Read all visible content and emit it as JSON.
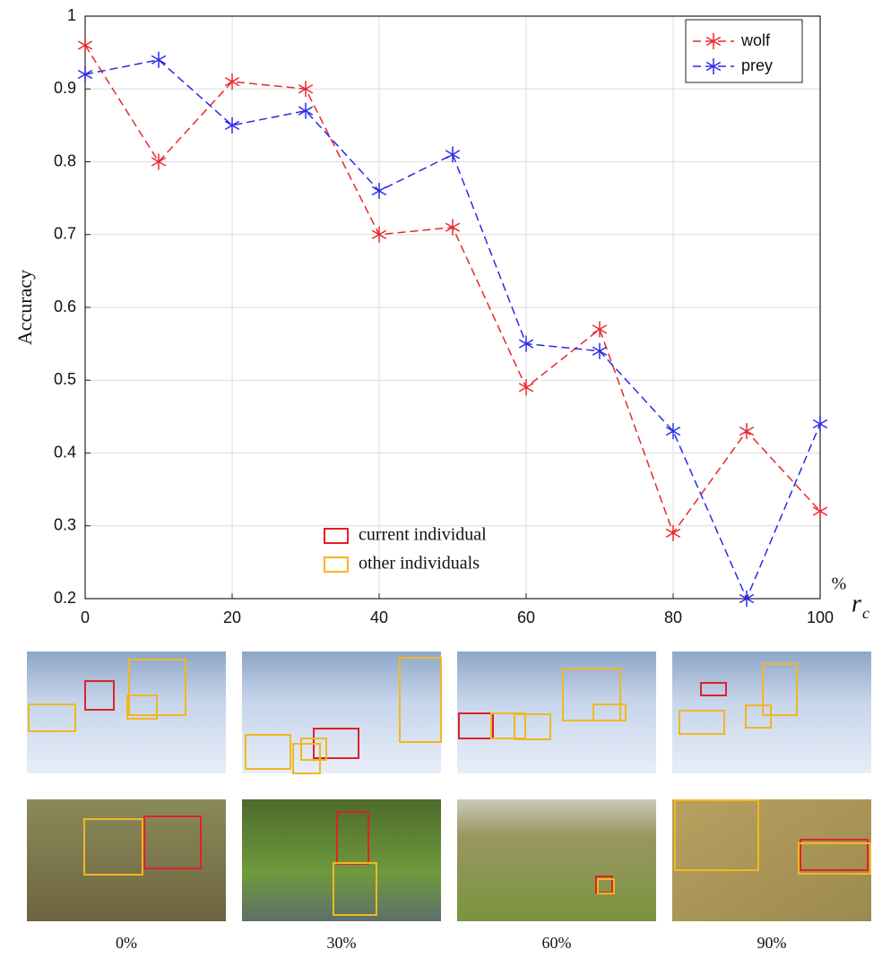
{
  "chart_data": {
    "type": "line",
    "ylabel": "Accuracy",
    "xlabel": "r",
    "xlabel_subscript": "c",
    "xlabel_unit": "%",
    "x": [
      0,
      10,
      20,
      30,
      40,
      50,
      60,
      70,
      80,
      90,
      100
    ],
    "series": [
      {
        "name": "wolf",
        "color": "#e8282d",
        "values": [
          0.96,
          0.8,
          0.91,
          0.9,
          0.7,
          0.71,
          0.49,
          0.57,
          0.29,
          0.43,
          0.32
        ]
      },
      {
        "name": "prey",
        "color": "#2a2ae8",
        "values": [
          0.92,
          0.94,
          0.85,
          0.87,
          0.76,
          0.81,
          0.55,
          0.54,
          0.43,
          0.2,
          0.44
        ]
      }
    ],
    "xlim": [
      0,
      100
    ],
    "xticks": [
      0,
      20,
      40,
      60,
      80,
      100
    ],
    "ylim": [
      0.2,
      1
    ],
    "yticks": [
      0.2,
      0.3,
      0.4,
      0.5,
      0.6,
      0.7,
      0.8,
      0.9,
      1
    ],
    "grid": true,
    "legend": "top-right",
    "box_legend": [
      {
        "label": "current individual",
        "color": "#e0202a"
      },
      {
        "label": "other individuals",
        "color": "#f0b820"
      }
    ]
  },
  "panels": [
    "0%",
    "30%",
    "60%",
    "90%"
  ]
}
